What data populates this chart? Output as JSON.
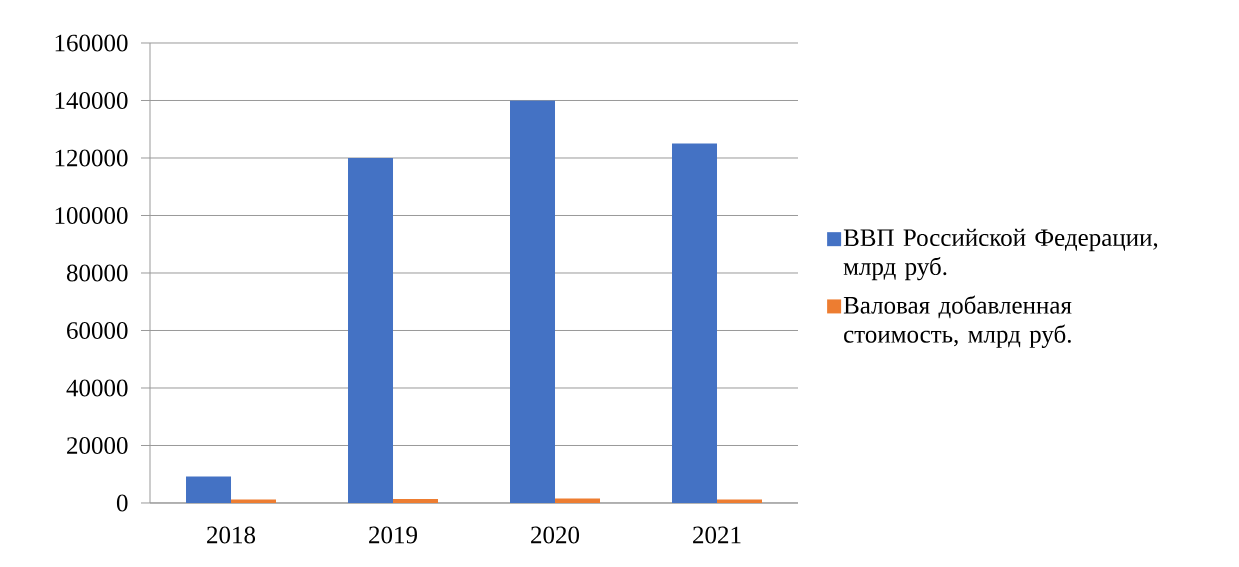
{
  "chart_data": {
    "type": "bar",
    "categories": [
      "2018",
      "2019",
      "2020",
      "2021"
    ],
    "series": [
      {
        "name": "ВВП Российской Федерации, млрд руб.",
        "color": "#4472c4",
        "values": [
          9200,
          120000,
          140000,
          125000
        ]
      },
      {
        "name": "Валовая добавленная стоимость, млрд руб.",
        "color": "#ed7d31",
        "values": [
          1200,
          1400,
          1600,
          1200
        ]
      }
    ],
    "ylim": [
      0,
      160000
    ],
    "yticks": [
      0,
      20000,
      40000,
      60000,
      80000,
      100000,
      120000,
      140000,
      160000
    ],
    "grid": "y",
    "legend": "right"
  }
}
